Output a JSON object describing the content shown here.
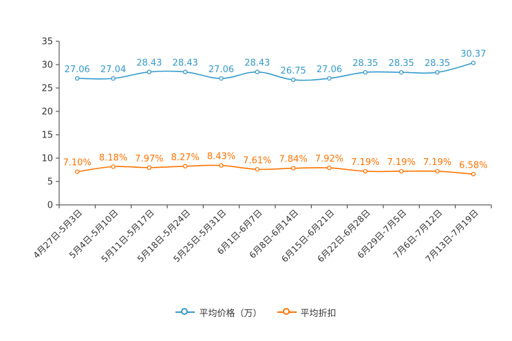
{
  "chart_data": {
    "type": "line",
    "categories": [
      "4月27日-5月3日",
      "5月4日-5月10日",
      "5月11日-5月17日",
      "5月18日-5月24日",
      "5月25日-5月31日",
      "6月1日-6月7日",
      "6月8日-6月14日",
      "6月15日-6月21日",
      "6月22日-6月28日",
      "6月29日-7月5日",
      "7月6日-7月12日",
      "7月13日-7月19日"
    ],
    "ylim": [
      0,
      35
    ],
    "yticks": [
      "0",
      "5",
      "10",
      "15",
      "20",
      "25",
      "30",
      "35"
    ],
    "series": [
      {
        "name": "平均价格（万）",
        "color": "#3399cc",
        "values": [
          27.06,
          27.04,
          28.43,
          28.43,
          27.06,
          28.43,
          26.75,
          27.06,
          28.35,
          28.35,
          28.35,
          30.37
        ],
        "labels": [
          "27.06",
          "27.04",
          "28.43",
          "28.43",
          "27.06",
          "28.43",
          "26.75",
          "27.06",
          "28.35",
          "28.35",
          "28.35",
          "30.37"
        ]
      },
      {
        "name": "平均折扣",
        "color": "#ff7300",
        "values": [
          7.1,
          8.18,
          7.97,
          8.27,
          8.43,
          7.61,
          7.84,
          7.92,
          7.19,
          7.19,
          7.19,
          6.58
        ],
        "labels": [
          "7.10%",
          "8.18%",
          "7.97%",
          "8.27%",
          "8.43%",
          "7.61%",
          "7.84%",
          "7.92%",
          "7.19%",
          "7.19%",
          "7.19%",
          "6.58%"
        ]
      }
    ],
    "legend_position": "bottom-center"
  }
}
